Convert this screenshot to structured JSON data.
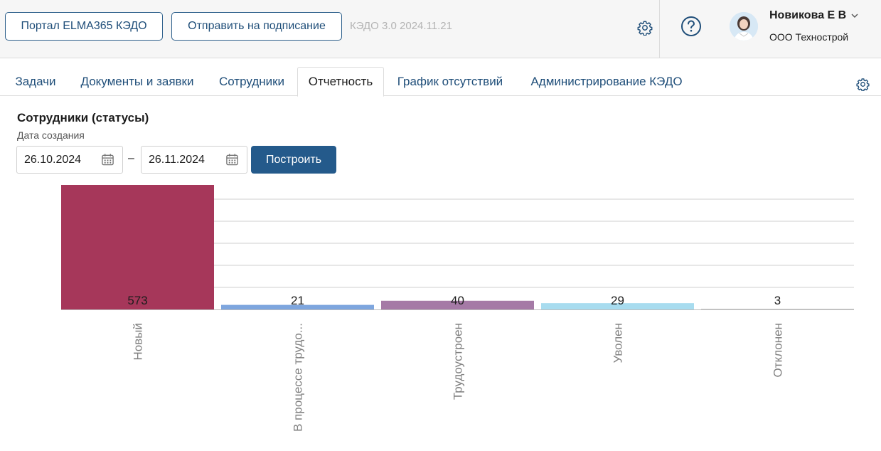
{
  "header": {
    "portal_button": "Портал ELMA365 КЭДО",
    "send_button": "Отправить на подписание",
    "version": "КЭДО 3.0 2024.11.21",
    "user_name": "Новикова Е В",
    "org_name": "ООО Технострой",
    "icons": [
      "gear-icon",
      "help-icon",
      "chevron-down-icon"
    ]
  },
  "tabs": [
    {
      "label": "Задачи",
      "active": false
    },
    {
      "label": "Документы и заявки",
      "active": false
    },
    {
      "label": "Сотрудники",
      "active": false
    },
    {
      "label": "Отчетность",
      "active": true
    },
    {
      "label": "График отсутствий",
      "active": false
    },
    {
      "label": "Администрирование КЭДО",
      "active": false
    }
  ],
  "report": {
    "title": "Сотрудники (статусы)",
    "date_label": "Дата создания",
    "date_from": "26.10.2024",
    "date_to": "26.11.2024",
    "dash": "–",
    "build_button": "Построить"
  },
  "colors": {
    "accent": "#245a8b",
    "link": "#1f4e79"
  },
  "chart_data": {
    "type": "bar",
    "categories": [
      "Новый",
      "В процессе трудо...",
      "Трудоустроен",
      "Уволен",
      "Отклонен"
    ],
    "values": [
      573,
      21,
      40,
      29,
      3
    ],
    "colors": [
      "#a6375a",
      "#7ea6de",
      "#a57aa6",
      "#a8dcef",
      "#c8c8c8"
    ],
    "title": "",
    "xlabel": "",
    "ylabel": "",
    "ylim": [
      0,
      573
    ],
    "grid": true
  }
}
